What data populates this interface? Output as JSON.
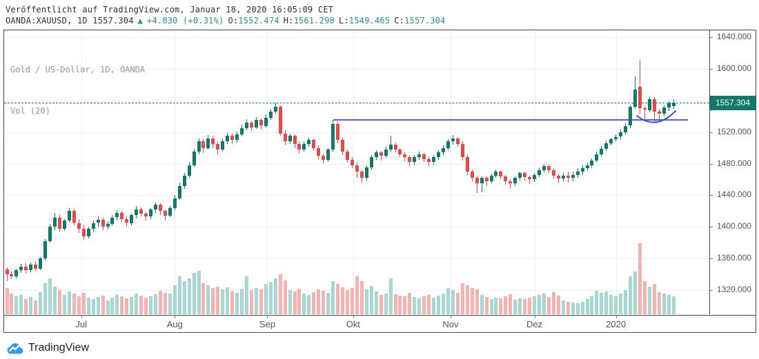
{
  "header": {
    "published": "Veröffentlicht auf TradingView.com, Januar 18, 2020 16:05:09 CET",
    "symbol_text": "OANDA:XAUUSD, 1D 1557.304",
    "arrow": "▲",
    "change": "+4.830 (+0.31%)",
    "open_label": "O:",
    "open": "1552.474",
    "high_label": "H:",
    "high": "1561.298",
    "low_label": "L:",
    "low": "1549.465",
    "close_label": "C:",
    "close": "1557.304"
  },
  "legend": {
    "title": "Gold / US-Dollar, 1D, OANDA",
    "indicator": "Vol (20)"
  },
  "footer": {
    "brand": "TradingView"
  },
  "colors": {
    "candle_up": "#10796c",
    "candle_down": "#e24b47",
    "volume_up": "#a6d8d1",
    "volume_down": "#f4b3b0",
    "header_accent_teal": "#1e968a",
    "price_tag_bg": "#0e7a6c",
    "support_line_blue": "#3d3de4",
    "arc_blue": "#2f55e8",
    "grid": "#eceff4",
    "axis_text": "#50535e",
    "legend_text": "#9196a1",
    "header_text": "#2a2e39",
    "brand_blue": "#2d9bf0"
  },
  "chart_data": {
    "type": "candlestick+volume",
    "title": "Gold / US-Dollar, 1D, OANDA",
    "symbol": "XAUUSD",
    "exchange": "OANDA",
    "interval": "1D",
    "last_bar_ohlc": {
      "open": 1552.474,
      "high": 1561.298,
      "low": 1549.465,
      "close": 1557.304,
      "change": "+4.830 (+0.31%)"
    },
    "y_axis": {
      "side": "right",
      "range_approx": [
        1300,
        1649
      ],
      "ticks": [
        {
          "value": 1640,
          "label": "1640.000"
        },
        {
          "value": 1600,
          "label": "1600.000"
        },
        {
          "value": 1560,
          "label": "1560.000"
        },
        {
          "value": 1520,
          "label": "1520.000"
        },
        {
          "value": 1480,
          "label": "1480.000"
        },
        {
          "value": 1440,
          "label": "1440.000"
        },
        {
          "value": 1400,
          "label": "1400.000"
        },
        {
          "value": 1360,
          "label": "1360.000"
        },
        {
          "value": 1320,
          "label": "1320.000"
        }
      ]
    },
    "x_axis": {
      "months": [
        {
          "label": "Jul",
          "index": 15.5
        },
        {
          "label": "Aug",
          "index": 35
        },
        {
          "label": "Sep",
          "index": 54.3
        },
        {
          "label": "Okt",
          "index": 72.2
        },
        {
          "label": "Nov",
          "index": 92.5
        },
        {
          "label": "Dez",
          "index": 110
        },
        {
          "label": "2020",
          "index": 127
        }
      ]
    },
    "levels": {
      "current_price": 1557.304,
      "current_price_label": "1557.304",
      "current_price_style": "dashed-teal",
      "support_line": {
        "price": 1535.4,
        "from_index": 68,
        "to_index": 142
      },
      "arc": {
        "from": [
          917,
          124
        ],
        "ctrl": [
          945,
          146
        ],
        "to": [
          973,
          117
        ]
      }
    },
    "grid": true,
    "volume_units": "relative",
    "candles_format": [
      "open",
      "high",
      "low",
      "close",
      "volume"
    ],
    "candles": [
      [
        1346,
        1349,
        1331,
        1340,
        38
      ],
      [
        1340,
        1344,
        1334,
        1337,
        30
      ],
      [
        1337,
        1347,
        1335,
        1345,
        26
      ],
      [
        1345,
        1353,
        1342,
        1350,
        28
      ],
      [
        1350,
        1354,
        1341,
        1345,
        22
      ],
      [
        1345,
        1355,
        1343,
        1352,
        25
      ],
      [
        1352,
        1356,
        1344,
        1347,
        20
      ],
      [
        1347,
        1362,
        1345,
        1360,
        32
      ],
      [
        1360,
        1385,
        1358,
        1382,
        45
      ],
      [
        1382,
        1404,
        1380,
        1400,
        52
      ],
      [
        1400,
        1418,
        1396,
        1412,
        40
      ],
      [
        1412,
        1416,
        1394,
        1398,
        35
      ],
      [
        1398,
        1410,
        1395,
        1408,
        28
      ],
      [
        1408,
        1424,
        1405,
        1420,
        33
      ],
      [
        1420,
        1423,
        1402,
        1405,
        30
      ],
      [
        1405,
        1410,
        1392,
        1398,
        26
      ],
      [
        1398,
        1402,
        1384,
        1388,
        31
      ],
      [
        1388,
        1400,
        1385,
        1398,
        24
      ],
      [
        1398,
        1408,
        1394,
        1405,
        22
      ],
      [
        1405,
        1413,
        1400,
        1409,
        25
      ],
      [
        1409,
        1412,
        1396,
        1400,
        27
      ],
      [
        1400,
        1407,
        1397,
        1404,
        20
      ],
      [
        1404,
        1415,
        1401,
        1412,
        24
      ],
      [
        1412,
        1421,
        1408,
        1418,
        28
      ],
      [
        1418,
        1420,
        1406,
        1410,
        26
      ],
      [
        1410,
        1413,
        1400,
        1405,
        23
      ],
      [
        1405,
        1417,
        1402,
        1415,
        25
      ],
      [
        1415,
        1426,
        1411,
        1422,
        30
      ],
      [
        1422,
        1425,
        1413,
        1417,
        27
      ],
      [
        1417,
        1419,
        1408,
        1413,
        24
      ],
      [
        1413,
        1424,
        1410,
        1422,
        26
      ],
      [
        1422,
        1431,
        1418,
        1428,
        29
      ],
      [
        1428,
        1430,
        1415,
        1420,
        34
      ],
      [
        1420,
        1422,
        1408,
        1414,
        31
      ],
      [
        1414,
        1426,
        1412,
        1424,
        30
      ],
      [
        1424,
        1440,
        1421,
        1436,
        42
      ],
      [
        1436,
        1456,
        1434,
        1452,
        55
      ],
      [
        1452,
        1468,
        1448,
        1465,
        48
      ],
      [
        1465,
        1482,
        1462,
        1478,
        52
      ],
      [
        1478,
        1499,
        1476,
        1495,
        60
      ],
      [
        1495,
        1512,
        1492,
        1508,
        63
      ],
      [
        1508,
        1511,
        1494,
        1500,
        45
      ],
      [
        1500,
        1516,
        1498,
        1512,
        42
      ],
      [
        1512,
        1515,
        1500,
        1505,
        38
      ],
      [
        1505,
        1508,
        1492,
        1498,
        40
      ],
      [
        1498,
        1512,
        1496,
        1508,
        36
      ],
      [
        1508,
        1519,
        1505,
        1515,
        39
      ],
      [
        1515,
        1518,
        1505,
        1510,
        33
      ],
      [
        1510,
        1521,
        1507,
        1517,
        31
      ],
      [
        1517,
        1529,
        1514,
        1525,
        37
      ],
      [
        1525,
        1536,
        1522,
        1532,
        55
      ],
      [
        1532,
        1534,
        1521,
        1526,
        35
      ],
      [
        1526,
        1539,
        1524,
        1535,
        38
      ],
      [
        1535,
        1537,
        1523,
        1528,
        36
      ],
      [
        1528,
        1542,
        1526,
        1538,
        44
      ],
      [
        1538,
        1549,
        1535,
        1546,
        47
      ],
      [
        1546,
        1557,
        1543,
        1552,
        52
      ],
      [
        1552,
        1554,
        1515,
        1518,
        58
      ],
      [
        1518,
        1522,
        1503,
        1508,
        49
      ],
      [
        1508,
        1518,
        1505,
        1515,
        35
      ],
      [
        1515,
        1517,
        1500,
        1505,
        33
      ],
      [
        1505,
        1508,
        1493,
        1498,
        37
      ],
      [
        1498,
        1508,
        1495,
        1505,
        30
      ],
      [
        1505,
        1513,
        1501,
        1510,
        28
      ],
      [
        1510,
        1512,
        1496,
        1500,
        32
      ],
      [
        1500,
        1503,
        1486,
        1490,
        36
      ],
      [
        1490,
        1493,
        1480,
        1485,
        34
      ],
      [
        1485,
        1500,
        1482,
        1498,
        31
      ],
      [
        1498,
        1535,
        1495,
        1530,
        48
      ],
      [
        1530,
        1534,
        1506,
        1510,
        44
      ],
      [
        1510,
        1513,
        1491,
        1495,
        39
      ],
      [
        1495,
        1498,
        1481,
        1485,
        35
      ],
      [
        1485,
        1488,
        1474,
        1478,
        38
      ],
      [
        1478,
        1481,
        1462,
        1470,
        55
      ],
      [
        1470,
        1473,
        1456,
        1462,
        48
      ],
      [
        1462,
        1478,
        1459,
        1475,
        36
      ],
      [
        1475,
        1491,
        1472,
        1488,
        41
      ],
      [
        1488,
        1497,
        1485,
        1494,
        33
      ],
      [
        1494,
        1496,
        1484,
        1490,
        28
      ],
      [
        1490,
        1501,
        1487,
        1498,
        30
      ],
      [
        1498,
        1515,
        1495,
        1504,
        52
      ],
      [
        1504,
        1507,
        1494,
        1498,
        29
      ],
      [
        1498,
        1500,
        1488,
        1492,
        27
      ],
      [
        1492,
        1494,
        1483,
        1488,
        26
      ],
      [
        1488,
        1490,
        1477,
        1482,
        31
      ],
      [
        1482,
        1491,
        1479,
        1488,
        25
      ],
      [
        1488,
        1495,
        1485,
        1492,
        23
      ],
      [
        1492,
        1494,
        1482,
        1486,
        26
      ],
      [
        1486,
        1488,
        1477,
        1482,
        28
      ],
      [
        1482,
        1491,
        1479,
        1488,
        24
      ],
      [
        1488,
        1497,
        1485,
        1494,
        27
      ],
      [
        1494,
        1503,
        1491,
        1500,
        30
      ],
      [
        1500,
        1511,
        1497,
        1508,
        38
      ],
      [
        1508,
        1516,
        1504,
        1512,
        35
      ],
      [
        1512,
        1514,
        1501,
        1505,
        31
      ],
      [
        1505,
        1508,
        1484,
        1488,
        45
      ],
      [
        1488,
        1491,
        1466,
        1470,
        42
      ],
      [
        1470,
        1473,
        1458,
        1462,
        38
      ],
      [
        1462,
        1465,
        1443,
        1455,
        36
      ],
      [
        1455,
        1464,
        1444,
        1462,
        28
      ],
      [
        1462,
        1464,
        1452,
        1458,
        25
      ],
      [
        1458,
        1467,
        1455,
        1465,
        22
      ],
      [
        1465,
        1473,
        1462,
        1470,
        24
      ],
      [
        1470,
        1472,
        1460,
        1464,
        23
      ],
      [
        1464,
        1466,
        1453,
        1458,
        26
      ],
      [
        1458,
        1460,
        1448,
        1455,
        29
      ],
      [
        1455,
        1464,
        1452,
        1462,
        21
      ],
      [
        1462,
        1470,
        1459,
        1468,
        23
      ],
      [
        1468,
        1470,
        1459,
        1463,
        22
      ],
      [
        1463,
        1465,
        1454,
        1460,
        24
      ],
      [
        1460,
        1468,
        1457,
        1466,
        26
      ],
      [
        1466,
        1475,
        1463,
        1472,
        28
      ],
      [
        1472,
        1480,
        1469,
        1477,
        30
      ],
      [
        1477,
        1479,
        1468,
        1472,
        25
      ],
      [
        1472,
        1474,
        1460,
        1465,
        32
      ],
      [
        1465,
        1467,
        1455,
        1461,
        27
      ],
      [
        1461,
        1468,
        1458,
        1465,
        20
      ],
      [
        1465,
        1470,
        1456,
        1462,
        18
      ],
      [
        1462,
        1470,
        1458,
        1466,
        17
      ],
      [
        1466,
        1474,
        1462,
        1470,
        16
      ],
      [
        1470,
        1478,
        1466,
        1474,
        18
      ],
      [
        1474,
        1481,
        1471,
        1478,
        22
      ],
      [
        1478,
        1487,
        1475,
        1484,
        26
      ],
      [
        1484,
        1495,
        1481,
        1492,
        34
      ],
      [
        1492,
        1502,
        1489,
        1499,
        31
      ],
      [
        1499,
        1509,
        1496,
        1506,
        33
      ],
      [
        1506,
        1513,
        1503,
        1511,
        28
      ],
      [
        1511,
        1517,
        1508,
        1514,
        26
      ],
      [
        1514,
        1523,
        1511,
        1520,
        30
      ],
      [
        1520,
        1531,
        1517,
        1528,
        35
      ],
      [
        1528,
        1555,
        1525,
        1552,
        55
      ],
      [
        1552,
        1590,
        1549,
        1574,
        62
      ],
      [
        1577,
        1611,
        1543,
        1550,
        103
      ],
      [
        1550,
        1553,
        1536,
        1548,
        48
      ],
      [
        1548,
        1565,
        1545,
        1562,
        40
      ],
      [
        1562,
        1564,
        1533,
        1546,
        44
      ],
      [
        1546,
        1549,
        1536,
        1543,
        32
      ],
      [
        1543,
        1554,
        1540,
        1551,
        30
      ],
      [
        1551,
        1559,
        1547,
        1556,
        28
      ],
      [
        1552.5,
        1561.3,
        1549.5,
        1557.3,
        26
      ]
    ]
  }
}
